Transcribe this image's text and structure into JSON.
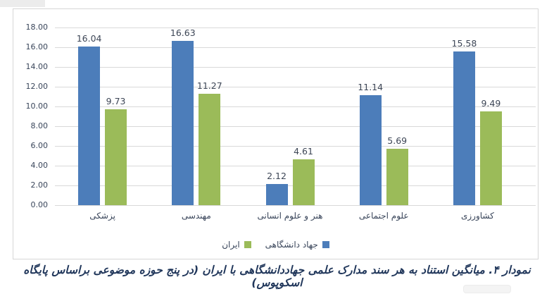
{
  "caption": "نمودار ۴. میانگین استناد به هر سند مدارک علمی جهاددانشگاهی با ایران (در پنج حوزه موضوعی براساس پایگاه اسکوپوس)",
  "colors": {
    "series_blue": "#4c7dba",
    "series_green": "#9bbb59",
    "gridline": "#d9d9d9",
    "frame_border": "#d6d6d6",
    "axis_text": "#39455a",
    "caption_text": "#21375b"
  },
  "chart_data": {
    "type": "bar",
    "title": "",
    "xlabel": "",
    "ylabel": "",
    "categories": [
      "پزشکی",
      "مهندسی",
      "هنر و علوم انسانی",
      "علوم اجتماعی",
      "کشاورزی"
    ],
    "series": [
      {
        "name": "جهاد دانشگاهی",
        "color": "#4c7dba",
        "values": [
          16.04,
          16.63,
          2.12,
          11.14,
          15.58
        ]
      },
      {
        "name": "ایران",
        "color": "#9bbb59",
        "values": [
          9.73,
          11.27,
          4.61,
          5.69,
          9.49
        ]
      }
    ],
    "ylim": [
      0,
      18
    ],
    "ytick_step": 2,
    "ytick_labels": [
      "0.00",
      "2.00",
      "4.00",
      "6.00",
      "8.00",
      "10.00",
      "12.00",
      "14.00",
      "16.00",
      "18.00"
    ],
    "grid": true,
    "data_labels": true,
    "legend_position": "bottom"
  }
}
